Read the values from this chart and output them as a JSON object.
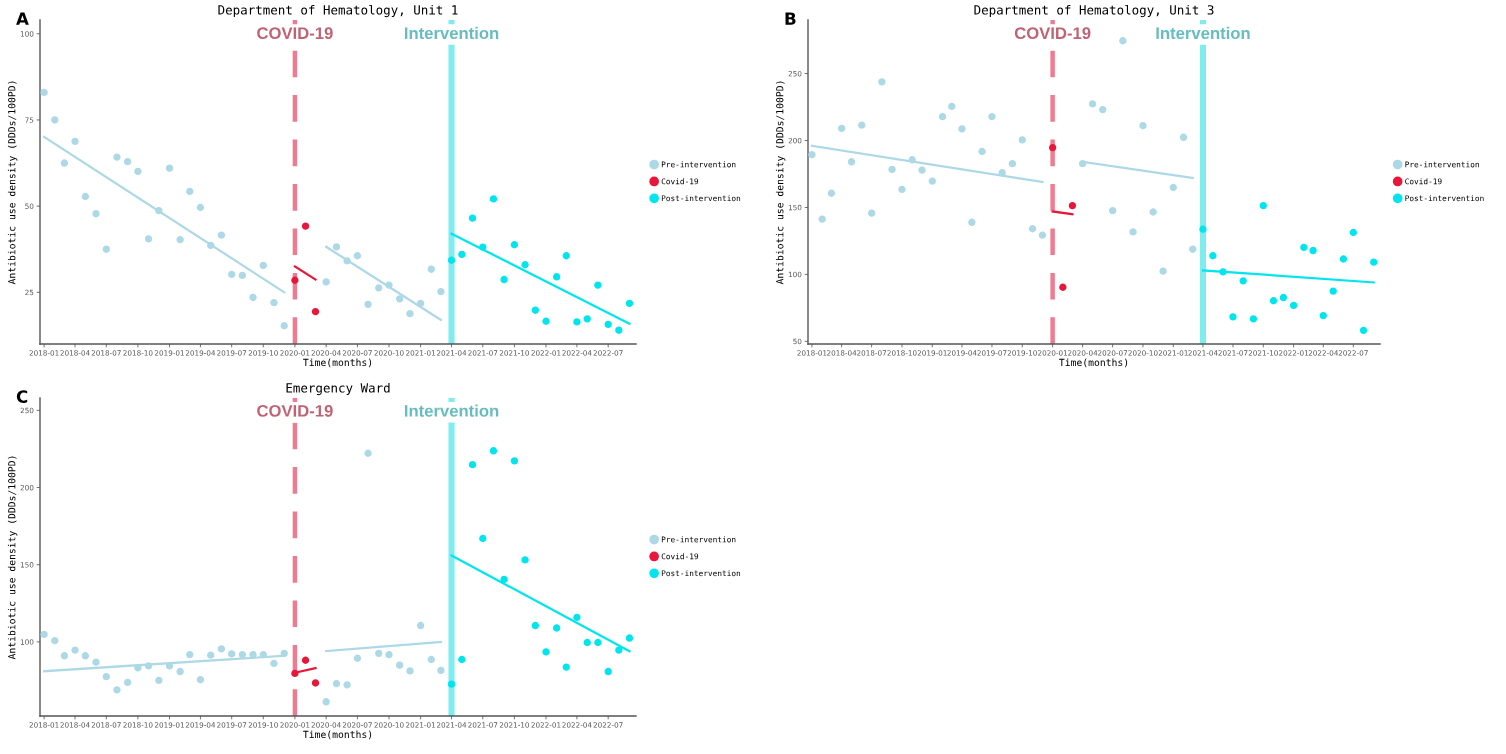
{
  "chart_data": [
    {
      "type": "scatter",
      "title": "Department of Hematology, Unit 1",
      "xlabel": "Time(months)",
      "ylabel": "Antibiotic use density (DDDs/100PD)",
      "annotations": [
        "A"
      ],
      "marker": "circle",
      "legend": "right",
      "grid": false,
      "xlim": [
        "2017-12-20",
        "2022-09-20"
      ],
      "xticks": [
        "2018-01",
        "2018-04",
        "2018-07",
        "2018-10",
        "2019-01",
        "2019-04",
        "2019-07",
        "2019-10",
        "2020-01",
        "2020-04",
        "2020-07",
        "2020-10",
        "2021-01",
        "2021-04",
        "2021-07",
        "2021-10",
        "2022-01",
        "2022-04",
        "2022-07"
      ],
      "ylim": [
        10,
        104
      ],
      "yticks": [
        25,
        50,
        75,
        100
      ],
      "series": [
        {
          "name": "Pre-intervention",
          "color": "#add8e6",
          "x": [
            "2018-01",
            "2018-02",
            "2018-03",
            "2018-04",
            "2018-05",
            "2018-06",
            "2018-07",
            "2018-08",
            "2018-09",
            "2018-10",
            "2018-11",
            "2018-12",
            "2019-01",
            "2019-02",
            "2019-03",
            "2019-04",
            "2019-05",
            "2019-06",
            "2019-07",
            "2019-08",
            "2019-09",
            "2019-10",
            "2019-11",
            "2019-12",
            "2020-04",
            "2020-05",
            "2020-06",
            "2020-07",
            "2020-08",
            "2020-09",
            "2020-10",
            "2020-11",
            "2020-12",
            "2021-01",
            "2021-02",
            "2021-03"
          ],
          "values": [
            83,
            75,
            62.5,
            68.8,
            52.8,
            47.8,
            37.5,
            64.2,
            62.9,
            60.1,
            40.5,
            48.7,
            61,
            40.3,
            54.3,
            49.6,
            38.6,
            41.6,
            30.2,
            29.9,
            23.5,
            32.8,
            22,
            15.3,
            28,
            38.2,
            34.1,
            35.6,
            21.5,
            26.3,
            27.1,
            23.1,
            18.8,
            21.8,
            31.7,
            25.2
          ]
        },
        {
          "name": "Covid-19",
          "color": "#e8173a",
          "x": [
            "2020-01",
            "2020-02",
            "2020-03"
          ],
          "values": [
            28.5,
            44.2,
            19.4
          ]
        },
        {
          "name": "Post-intervention",
          "color": "#00e5ee",
          "x": [
            "2021-04",
            "2021-05",
            "2021-06",
            "2021-07",
            "2021-08",
            "2021-09",
            "2021-10",
            "2021-11",
            "2021-12",
            "2022-01",
            "2022-02",
            "2022-03",
            "2022-04",
            "2022-05",
            "2022-06",
            "2022-07",
            "2022-08",
            "2022-09"
          ],
          "values": [
            34.3,
            36,
            46.5,
            38.1,
            52.1,
            28.7,
            38.8,
            33,
            19.8,
            16.6,
            29.5,
            35.6,
            16.4,
            17.3,
            27.1,
            15.7,
            14,
            21.8
          ]
        },
        {
          "type": "line",
          "marker": "none",
          "color": "#add8e6",
          "x": [
            "2018-01",
            "2019-12"
          ],
          "values": [
            70.1,
            25
          ]
        },
        {
          "type": "line",
          "marker": "none",
          "color": "#e8173a",
          "x": [
            "2020-01",
            "2020-03"
          ],
          "values": [
            32.5,
            28.7
          ]
        },
        {
          "type": "line",
          "marker": "none",
          "color": "#add8e6",
          "x": [
            "2020-04",
            "2021-03"
          ],
          "values": [
            38.2,
            17
          ]
        },
        {
          "type": "line",
          "marker": "none",
          "color": "#00e5ee",
          "x": [
            "2021-04",
            "2022-09"
          ],
          "values": [
            42,
            15.9
          ]
        }
      ],
      "ref_lines": [
        {
          "axis": "x",
          "value": "2020-01",
          "label": "COVID-19",
          "color": "#f07a90",
          "line_style": "dashed"
        },
        {
          "axis": "x",
          "value": "2021-04",
          "label": "Intervention",
          "color": "#7fecef",
          "line_style": "solid"
        }
      ]
    },
    {
      "type": "scatter",
      "title": "Department of Hematology, Unit 3",
      "xlabel": "Time(months)",
      "ylabel": "Antibiotic use density (DDDs/100PD)",
      "annotations": [
        "B"
      ],
      "marker": "circle",
      "legend": "right",
      "grid": false,
      "xlim": [
        "2017-12-20",
        "2022-09-20"
      ],
      "xticks": [
        "2018-01",
        "2018-04",
        "2018-07",
        "2018-10",
        "2019-01",
        "2019-04",
        "2019-07",
        "2019-10",
        "2020-01",
        "2020-04",
        "2020-07",
        "2020-10",
        "2021-01",
        "2021-04",
        "2021-07",
        "2021-10",
        "2022-01",
        "2022-04",
        "2022-07"
      ],
      "ylim": [
        48,
        290
      ],
      "yticks": [
        50,
        100,
        150,
        200,
        250
      ],
      "series": [
        {
          "name": "Pre-intervention",
          "color": "#add8e6",
          "x": [
            "2018-01",
            "2018-02",
            "2018-03",
            "2018-04",
            "2018-05",
            "2018-06",
            "2018-07",
            "2018-08",
            "2018-09",
            "2018-10",
            "2018-11",
            "2018-12",
            "2019-01",
            "2019-02",
            "2019-03",
            "2019-04",
            "2019-05",
            "2019-06",
            "2019-07",
            "2019-08",
            "2019-09",
            "2019-10",
            "2019-11",
            "2019-12",
            "2020-04",
            "2020-05",
            "2020-06",
            "2020-07",
            "2020-08",
            "2020-09",
            "2020-10",
            "2020-11",
            "2020-12",
            "2021-01",
            "2021-02",
            "2021-03"
          ],
          "values": [
            189.4,
            141.3,
            160.6,
            209.1,
            184.1,
            211.5,
            145.7,
            243.8,
            178.4,
            163.5,
            185.6,
            177.9,
            169.7,
            217.8,
            225.5,
            208.7,
            138.9,
            191.8,
            217.8,
            176,
            182.7,
            200.5,
            134.1,
            129.3,
            182.7,
            227.4,
            223.1,
            147.6,
            274.5,
            131.7,
            211.1,
            146.6,
            102.4,
            164.9,
            202.4,
            118.8
          ]
        },
        {
          "name": "Covid-19",
          "color": "#e8173a",
          "x": [
            "2020-01",
            "2020-02",
            "2020-03"
          ],
          "values": [
            194.7,
            90.4,
            151.4
          ]
        },
        {
          "name": "Post-intervention",
          "color": "#00e5ee",
          "x": [
            "2021-04",
            "2021-05",
            "2021-06",
            "2021-07",
            "2021-08",
            "2021-09",
            "2021-10",
            "2021-11",
            "2021-12",
            "2022-01",
            "2022-02",
            "2022-03",
            "2022-04",
            "2022-05",
            "2022-06",
            "2022-07",
            "2022-08",
            "2022-09"
          ],
          "values": [
            133.7,
            113.9,
            101.9,
            68.3,
            95.2,
            66.8,
            151.4,
            80.3,
            82.7,
            76.9,
            120.2,
            117.8,
            69.2,
            87.5,
            111.5,
            131.3,
            58.2,
            109.1
          ]
        },
        {
          "type": "line",
          "marker": "none",
          "color": "#add8e6",
          "x": [
            "2018-01",
            "2019-12"
          ],
          "values": [
            196,
            169
          ]
        },
        {
          "type": "line",
          "marker": "none",
          "color": "#e8173a",
          "x": [
            "2020-01",
            "2020-03"
          ],
          "values": [
            147,
            145
          ]
        },
        {
          "type": "line",
          "marker": "none",
          "color": "#add8e6",
          "x": [
            "2020-04",
            "2021-03"
          ],
          "values": [
            184,
            172
          ]
        },
        {
          "type": "line",
          "marker": "none",
          "color": "#00e5ee",
          "x": [
            "2021-04",
            "2022-09"
          ],
          "values": [
            103,
            94
          ]
        }
      ],
      "ref_lines": [
        {
          "axis": "x",
          "value": "2020-01",
          "label": "COVID-19",
          "color": "#f07a90",
          "line_style": "dashed"
        },
        {
          "axis": "x",
          "value": "2021-04",
          "label": "Intervention",
          "color": "#7fecef",
          "line_style": "solid"
        }
      ]
    },
    {
      "type": "scatter",
      "title": "Emergency Ward",
      "xlabel": "Time(months)",
      "ylabel": "Antibiotic use density (DDDs/100PD)",
      "annotations": [
        "C"
      ],
      "marker": "circle",
      "legend": "right",
      "grid": false,
      "xlim": [
        "2017-12-20",
        "2022-09-20"
      ],
      "xticks": [
        "2018-01",
        "2018-04",
        "2018-07",
        "2018-10",
        "2019-01",
        "2019-04",
        "2019-07",
        "2019-10",
        "2020-01",
        "2020-04",
        "2020-07",
        "2020-10",
        "2021-01",
        "2021-04",
        "2021-07",
        "2021-10",
        "2022-01",
        "2022-04",
        "2022-07"
      ],
      "ylim": [
        52,
        258
      ],
      "yticks": [
        100,
        150,
        200,
        250
      ],
      "series": [
        {
          "name": "Pre-intervention",
          "color": "#add8e6",
          "x": [
            "2018-01",
            "2018-02",
            "2018-03",
            "2018-04",
            "2018-05",
            "2018-06",
            "2018-07",
            "2018-08",
            "2018-09",
            "2018-10",
            "2018-11",
            "2018-12",
            "2019-01",
            "2019-02",
            "2019-03",
            "2019-04",
            "2019-05",
            "2019-06",
            "2019-07",
            "2019-08",
            "2019-09",
            "2019-10",
            "2019-11",
            "2019-12",
            "2020-04",
            "2020-05",
            "2020-06",
            "2020-07",
            "2020-08",
            "2020-09",
            "2020-10",
            "2020-11",
            "2020-12",
            "2021-01",
            "2021-02",
            "2021-03"
          ],
          "values": [
            104.9,
            100.8,
            91,
            94.7,
            91,
            86.9,
            77.5,
            68.9,
            73.8,
            83.2,
            84.5,
            75.1,
            84.5,
            80.8,
            91.8,
            75.5,
            91.4,
            95.5,
            92.2,
            91.8,
            91.8,
            91.8,
            86.1,
            92.6,
            61.2,
            73,
            72.2,
            89.4,
            222.2,
            92.6,
            91.8,
            84.9,
            81.2,
            110.6,
            88.6,
            81.6
          ]
        },
        {
          "name": "Covid-19",
          "color": "#e8173a",
          "x": [
            "2020-01",
            "2020-02",
            "2020-03"
          ],
          "values": [
            79.6,
            88.1,
            73.4
          ]
        },
        {
          "name": "Post-intervention",
          "color": "#00e5ee",
          "x": [
            "2021-04",
            "2021-05",
            "2021-06",
            "2021-07",
            "2021-08",
            "2021-09",
            "2021-10",
            "2021-11",
            "2021-12",
            "2022-01",
            "2022-02",
            "2022-03",
            "2022-04",
            "2022-05",
            "2022-06",
            "2022-07",
            "2022-08",
            "2022-09"
          ],
          "values": [
            72.6,
            88.6,
            214.8,
            167,
            223.8,
            140.5,
            217.3,
            153.1,
            110.6,
            93.5,
            109,
            83.7,
            115.9,
            99.6,
            99.6,
            80.8,
            94.7,
            102.5
          ]
        },
        {
          "type": "line",
          "marker": "none",
          "color": "#add8e6",
          "x": [
            "2018-01",
            "2019-12"
          ],
          "values": [
            81,
            91
          ]
        },
        {
          "type": "line",
          "marker": "none",
          "color": "#e8173a",
          "x": [
            "2020-01",
            "2020-03"
          ],
          "values": [
            80,
            83
          ]
        },
        {
          "type": "line",
          "marker": "none",
          "color": "#add8e6",
          "x": [
            "2020-04",
            "2021-03"
          ],
          "values": [
            94,
            100
          ]
        },
        {
          "type": "line",
          "marker": "none",
          "color": "#00e5ee",
          "x": [
            "2021-04",
            "2022-09"
          ],
          "values": [
            156,
            94
          ]
        }
      ],
      "ref_lines": [
        {
          "axis": "x",
          "value": "2020-01",
          "label": "COVID-19",
          "color": "#f07a90",
          "line_style": "dashed"
        },
        {
          "axis": "x",
          "value": "2021-04",
          "label": "Intervention",
          "color": "#7fecef",
          "line_style": "solid"
        }
      ]
    }
  ]
}
